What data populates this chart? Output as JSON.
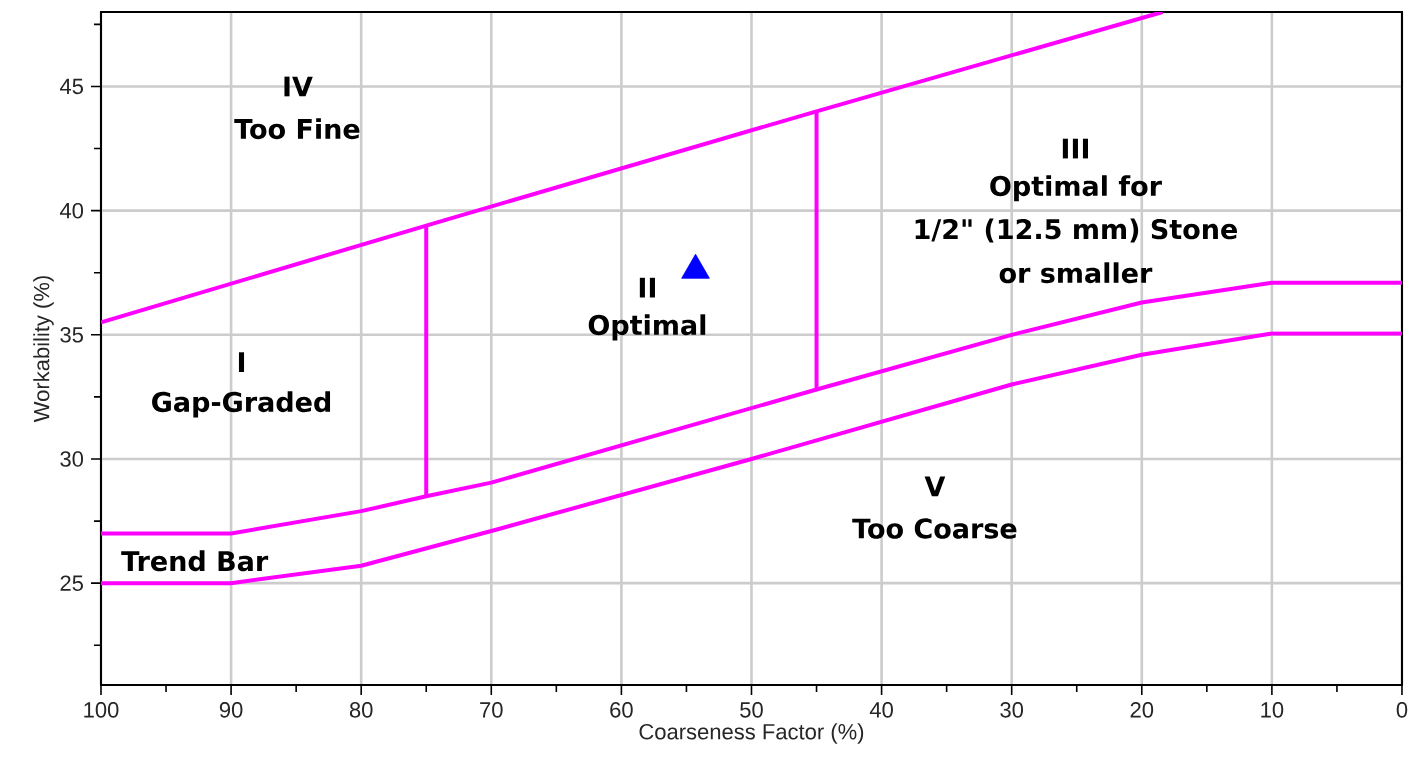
{
  "chart_data": {
    "type": "line",
    "xlabel": "Coarseness Factor (%)",
    "ylabel": "Workability (%)",
    "xlim": [
      100,
      0
    ],
    "ylim": [
      20.9,
      48
    ],
    "xticks": [
      0,
      {
        "value": 5,
        "label": null
      },
      10,
      {
        "value": 15,
        "label": null
      },
      20,
      {
        "value": 25,
        "label": null
      },
      30,
      {
        "value": 35,
        "label": null
      },
      40,
      {
        "value": 45,
        "label": null
      },
      50,
      {
        "value": 55,
        "label": null
      },
      60,
      {
        "value": 65,
        "label": null
      },
      70,
      {
        "value": 75,
        "label": null
      },
      80,
      {
        "value": 85,
        "label": null
      },
      90,
      {
        "value": 95,
        "label": null
      },
      100
    ],
    "yticks": [
      {
        "value": 22.5,
        "label": null
      },
      25,
      {
        "value": 27.5,
        "label": null
      },
      30,
      {
        "value": 32.5,
        "label": null
      },
      35,
      {
        "value": 37.5,
        "label": null
      },
      40,
      {
        "value": 42.5,
        "label": null
      },
      45,
      {
        "value": 47.5,
        "label": null
      }
    ],
    "grid": true,
    "line_style": "solid",
    "series": [
      {
        "color": "#ff00ff",
        "x": [
          100,
          75,
          45,
          18.4
        ],
        "values": [
          35.5,
          39.4,
          44,
          48
        ]
      },
      {
        "color": "#ff00ff",
        "x": [
          100,
          90,
          80,
          75,
          70,
          45,
          30,
          20,
          10,
          0
        ],
        "values": [
          27,
          27,
          27.9,
          28.5,
          29.05,
          32.8,
          35,
          36.3,
          37.1,
          37.1
        ]
      },
      {
        "color": "#ff00ff",
        "x": [
          100,
          90,
          80,
          70,
          50,
          30,
          20,
          10,
          0
        ],
        "values": [
          25,
          25,
          25.7,
          27.1,
          30,
          33,
          34.2,
          35.05,
          35.05
        ]
      },
      {
        "color": "#ff00ff",
        "x": [
          75,
          75
        ],
        "values": [
          28.5,
          39.4
        ]
      },
      {
        "color": "#ff00ff",
        "x": [
          45,
          45
        ],
        "values": [
          32.8,
          44
        ]
      },
      {
        "type": "scatter",
        "color": "#0000ff",
        "marker": "triangle",
        "x": [
          54.3
        ],
        "values": [
          37.6
        ]
      }
    ],
    "annotations": [
      "IV",
      "Too Fine",
      "I",
      "Gap-Graded",
      "II",
      "Optimal",
      "III",
      "Optimal for",
      "1/2\" (12.5 mm) Stone",
      "or smaller",
      "V",
      "Too Coarse",
      "Trend Bar"
    ]
  }
}
